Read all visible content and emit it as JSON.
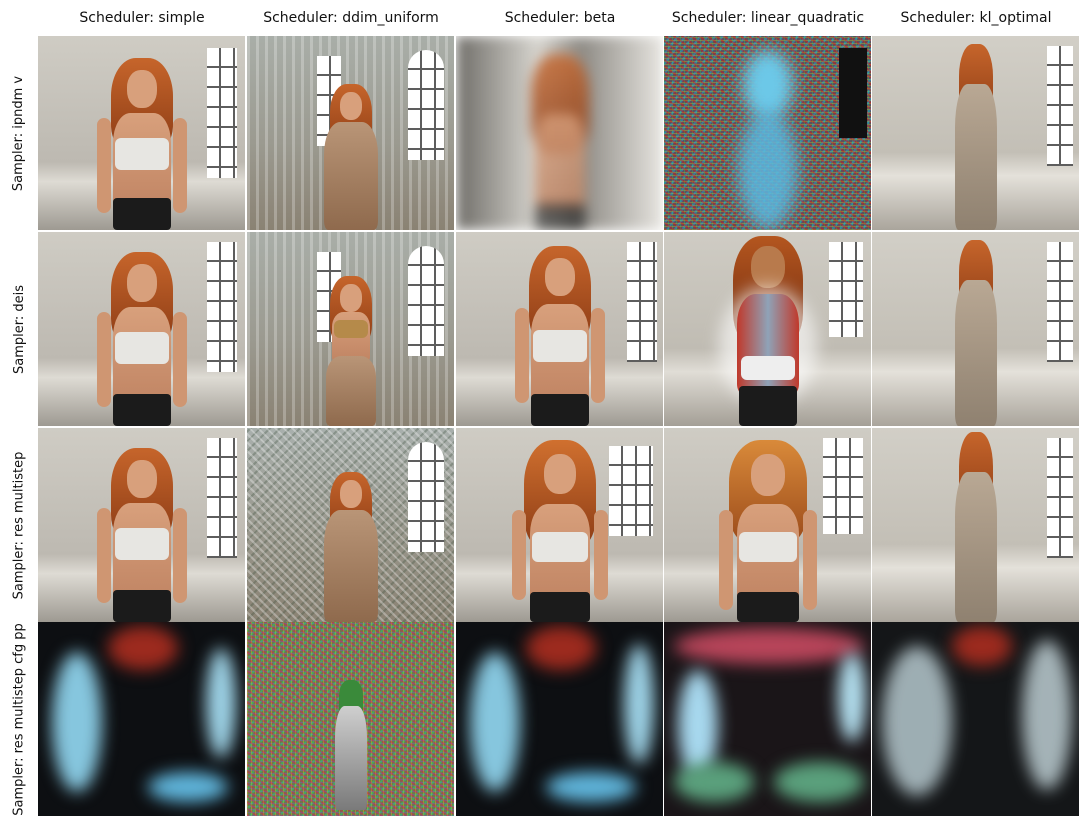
{
  "columns": [
    {
      "label": "Scheduler: simple"
    },
    {
      "label": "Scheduler: ddim_uniform"
    },
    {
      "label": "Scheduler: beta"
    },
    {
      "label": "Scheduler: linear_quadratic"
    },
    {
      "label": "Scheduler: kl_optimal"
    }
  ],
  "rows": [
    {
      "label": "Sampler: ipndm v"
    },
    {
      "label": "Sampler: deis"
    },
    {
      "label": "Sampler: res multistep"
    },
    {
      "label": "Sampler: res multistep cfg pp"
    }
  ]
}
